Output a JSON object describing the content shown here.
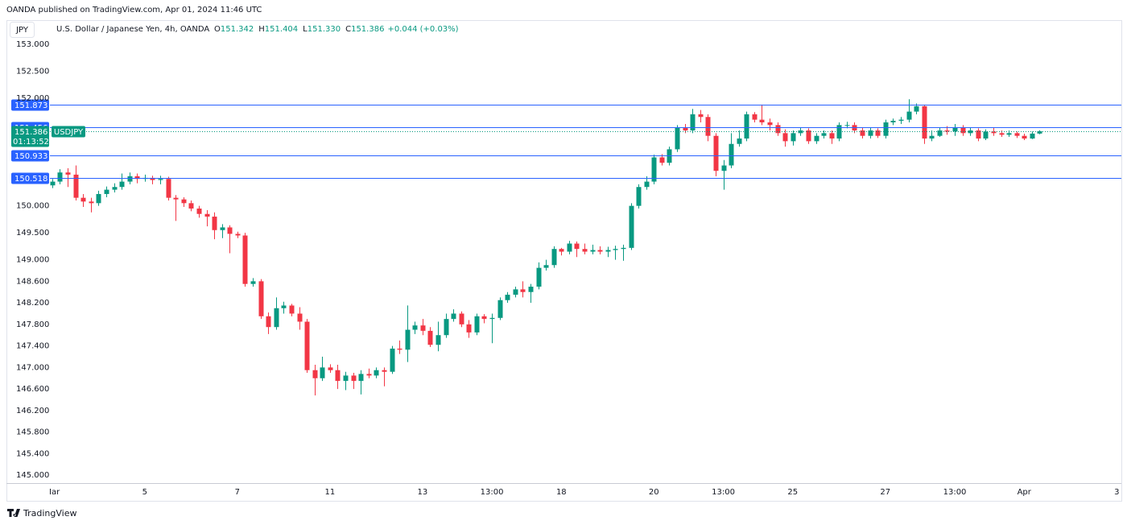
{
  "header": {
    "published": "OANDA published on TradingView.com, Apr 01, 2024 11:46 UTC"
  },
  "chart_data": {
    "type": "candlestick",
    "currency": "JPY",
    "legend": {
      "symbol": "U.S. Dollar / Japanese Yen, 4h, OANDA",
      "fields": [
        {
          "label": "O",
          "value": "151.342"
        },
        {
          "label": "H",
          "value": "151.404"
        },
        {
          "label": "L",
          "value": "151.330"
        },
        {
          "label": "C",
          "value": "151.386"
        }
      ],
      "change": "+0.044 (+0.03%)"
    },
    "up_color": "#089981",
    "down_color": "#f23645",
    "candles": {
      "open": [
        150.38,
        150.45,
        150.62,
        150.58,
        150.15,
        150.08,
        150.05,
        150.22,
        150.3,
        150.35,
        150.45,
        150.55,
        150.5,
        150.52,
        150.48,
        150.5,
        150.15,
        150.12,
        150.05,
        149.95,
        149.85,
        149.8,
        149.55,
        149.6,
        149.48,
        149.45,
        148.55,
        148.6,
        147.95,
        147.75,
        148.1,
        148.15,
        148.0,
        147.85,
        146.95,
        146.8,
        147.0,
        146.95,
        146.75,
        146.85,
        146.75,
        146.88,
        146.85,
        146.95,
        146.92,
        147.35,
        147.33,
        147.7,
        147.78,
        147.68,
        147.42,
        147.6,
        147.9,
        148.0,
        147.8,
        147.65,
        147.95,
        147.9,
        147.92,
        148.25,
        148.35,
        148.45,
        148.4,
        148.5,
        148.85,
        148.9,
        149.2,
        149.15,
        149.3,
        149.2,
        149.15,
        149.18,
        149.15,
        149.18,
        149.2,
        149.22,
        150.0,
        150.35,
        150.45,
        150.9,
        150.8,
        151.05,
        151.45,
        151.4,
        151.7,
        151.65,
        151.3,
        150.65,
        150.75,
        151.15,
        151.25,
        151.7,
        151.6,
        151.55,
        151.5,
        151.35,
        151.2,
        151.35,
        151.4,
        151.2,
        151.3,
        151.35,
        151.25,
        151.5,
        151.5,
        151.4,
        151.3,
        151.4,
        151.3,
        151.55,
        151.58,
        151.6,
        151.75,
        151.85,
        151.25,
        151.3,
        151.4,
        151.38,
        151.45,
        151.35,
        151.4,
        151.25,
        151.38,
        151.35,
        151.32,
        151.35,
        151.3,
        151.25,
        151.342
      ],
      "high": [
        150.5,
        150.68,
        150.7,
        150.75,
        150.22,
        150.15,
        150.28,
        150.36,
        150.42,
        150.6,
        150.62,
        150.6,
        150.58,
        150.56,
        150.56,
        150.54,
        150.2,
        150.16,
        150.1,
        150.0,
        149.92,
        149.88,
        149.66,
        149.64,
        149.52,
        149.5,
        148.66,
        148.64,
        148.02,
        148.3,
        148.22,
        148.18,
        148.12,
        147.9,
        147.05,
        147.2,
        147.06,
        147.05,
        146.92,
        146.9,
        146.95,
        146.98,
        147.0,
        147.0,
        147.4,
        147.5,
        148.15,
        147.85,
        147.9,
        147.75,
        147.85,
        148.0,
        148.08,
        148.04,
        147.88,
        148.0,
        147.99,
        148.0,
        148.3,
        148.4,
        148.5,
        148.6,
        148.55,
        148.95,
        149.0,
        149.25,
        149.22,
        149.35,
        149.34,
        149.3,
        149.28,
        149.25,
        149.24,
        149.26,
        149.28,
        150.05,
        150.4,
        150.55,
        150.95,
        150.96,
        151.1,
        151.5,
        151.52,
        151.8,
        151.78,
        151.7,
        151.35,
        150.85,
        151.35,
        151.4,
        151.75,
        151.74,
        151.88,
        151.62,
        151.55,
        151.42,
        151.4,
        151.45,
        151.44,
        151.35,
        151.4,
        151.4,
        151.55,
        151.56,
        151.55,
        151.45,
        151.45,
        151.44,
        151.6,
        151.62,
        151.65,
        151.98,
        151.9,
        151.88,
        151.4,
        151.45,
        151.48,
        151.52,
        151.5,
        151.45,
        151.44,
        151.42,
        151.46,
        151.4,
        151.4,
        151.38,
        151.34,
        151.38,
        151.404
      ],
      "low": [
        150.33,
        150.4,
        150.35,
        150.1,
        149.98,
        149.88,
        150.0,
        150.16,
        150.25,
        150.3,
        150.4,
        150.42,
        150.45,
        150.4,
        150.4,
        150.1,
        149.72,
        149.98,
        149.9,
        149.78,
        149.62,
        149.38,
        149.4,
        149.12,
        149.4,
        148.5,
        148.5,
        147.9,
        147.62,
        147.7,
        148.0,
        147.95,
        147.7,
        146.9,
        146.48,
        146.75,
        146.9,
        146.6,
        146.58,
        146.6,
        146.5,
        146.8,
        146.8,
        146.65,
        146.88,
        147.25,
        147.1,
        147.62,
        147.6,
        147.38,
        147.3,
        147.55,
        147.85,
        147.75,
        147.55,
        147.6,
        147.82,
        147.45,
        147.88,
        148.2,
        148.3,
        148.3,
        148.2,
        148.45,
        148.8,
        148.85,
        149.08,
        149.1,
        149.05,
        149.1,
        149.1,
        149.1,
        149.05,
        149.0,
        148.98,
        149.18,
        149.95,
        150.3,
        150.4,
        150.75,
        150.75,
        151.0,
        151.35,
        151.35,
        151.55,
        151.2,
        150.55,
        150.3,
        150.7,
        151.1,
        151.2,
        151.55,
        151.5,
        151.4,
        151.3,
        151.1,
        151.12,
        151.3,
        151.15,
        151.15,
        151.25,
        151.15,
        151.2,
        151.44,
        151.35,
        151.25,
        151.25,
        151.26,
        151.25,
        151.5,
        151.52,
        151.55,
        151.7,
        151.15,
        151.2,
        151.28,
        151.32,
        151.3,
        151.3,
        151.3,
        151.2,
        151.22,
        151.3,
        151.28,
        151.28,
        151.26,
        151.22,
        151.24,
        151.33
      ],
      "close": [
        150.45,
        150.62,
        150.58,
        150.15,
        150.08,
        150.05,
        150.22,
        150.3,
        150.35,
        150.45,
        150.55,
        150.5,
        150.52,
        150.48,
        150.5,
        150.15,
        150.12,
        150.05,
        149.95,
        149.85,
        149.8,
        149.55,
        149.6,
        149.48,
        149.45,
        148.55,
        148.6,
        147.95,
        147.75,
        148.1,
        148.15,
        148.0,
        147.85,
        146.95,
        146.8,
        147.0,
        146.95,
        146.75,
        146.85,
        146.75,
        146.88,
        146.85,
        146.95,
        146.92,
        147.35,
        147.33,
        147.7,
        147.78,
        147.68,
        147.42,
        147.6,
        147.9,
        148.0,
        147.8,
        147.65,
        147.95,
        147.9,
        147.92,
        148.25,
        148.35,
        148.45,
        148.4,
        148.5,
        148.85,
        148.9,
        149.2,
        149.15,
        149.3,
        149.2,
        149.15,
        149.18,
        149.15,
        149.18,
        149.2,
        149.22,
        150.0,
        150.35,
        150.45,
        150.9,
        150.8,
        151.05,
        151.45,
        151.4,
        151.7,
        151.65,
        151.3,
        150.65,
        150.75,
        151.15,
        151.25,
        151.7,
        151.6,
        151.55,
        151.5,
        151.35,
        151.2,
        151.35,
        151.4,
        151.2,
        151.3,
        151.35,
        151.25,
        151.5,
        151.5,
        151.4,
        151.3,
        151.4,
        151.3,
        151.55,
        151.58,
        151.6,
        151.75,
        151.85,
        151.25,
        151.3,
        151.4,
        151.38,
        151.45,
        151.35,
        151.4,
        151.25,
        151.38,
        151.35,
        151.32,
        151.35,
        151.3,
        151.25,
        151.342,
        151.386
      ]
    },
    "xlim": [
      -0.3,
      138.6
    ],
    "xticks": [
      {
        "value": 0,
        "label": "Mar"
      },
      {
        "value": 12,
        "label": "5"
      },
      {
        "value": 24,
        "label": "7"
      },
      {
        "value": 36,
        "label": "11"
      },
      {
        "value": 48,
        "label": "13"
      },
      {
        "value": 57,
        "label": "13:00"
      },
      {
        "value": 66,
        "label": "18"
      },
      {
        "value": 78,
        "label": "20"
      },
      {
        "value": 87,
        "label": "13:00"
      },
      {
        "value": 96,
        "label": "25"
      },
      {
        "value": 108,
        "label": "27"
      },
      {
        "value": 117,
        "label": "13:00"
      },
      {
        "value": 126,
        "label": "Apr"
      },
      {
        "value": 138,
        "label": "3"
      }
    ],
    "ylim": [
      144.853,
      153.448
    ],
    "yticks": [
      {
        "value": 153,
        "label": "153.000"
      },
      {
        "value": 152.5,
        "label": "152.500"
      },
      {
        "value": 152,
        "label": "152.000"
      },
      {
        "value": 150,
        "label": "150.000"
      },
      {
        "value": 149.5,
        "label": "149.500"
      },
      {
        "value": 149,
        "label": "149.000"
      },
      {
        "value": 148.6,
        "label": "148.600"
      },
      {
        "value": 148.2,
        "label": "148.200"
      },
      {
        "value": 147.8,
        "label": "147.800"
      },
      {
        "value": 147.4,
        "label": "147.400"
      },
      {
        "value": 147,
        "label": "147.000"
      },
      {
        "value": 146.6,
        "label": "146.600"
      },
      {
        "value": 146.2,
        "label": "146.200"
      },
      {
        "value": 145.8,
        "label": "145.800"
      },
      {
        "value": 145.4,
        "label": "145.400"
      },
      {
        "value": 145,
        "label": "145.000"
      }
    ],
    "price_lines": [
      151.873,
      151.456,
      150.933,
      150.518
    ],
    "price_line_color": "#2962ff",
    "current_price": {
      "value": 151.386,
      "countdown": "01:13:52",
      "symbol": "USDJPY"
    }
  },
  "footer": {
    "brand": "TradingView"
  }
}
